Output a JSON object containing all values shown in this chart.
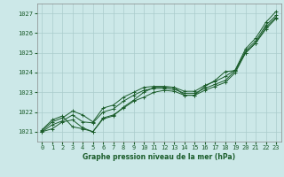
{
  "title": "Graphe pression niveau de la mer (hPa)",
  "background_color": "#cce8e8",
  "grid_color": "#aacccc",
  "line_color": "#1a5c2a",
  "ylim": [
    1020.5,
    1027.5
  ],
  "xlim": [
    -0.5,
    23.5
  ],
  "yticks": [
    1021,
    1022,
    1023,
    1024,
    1025,
    1026,
    1027
  ],
  "xticks": [
    0,
    1,
    2,
    3,
    4,
    5,
    6,
    7,
    8,
    9,
    10,
    11,
    12,
    13,
    14,
    15,
    16,
    17,
    18,
    19,
    20,
    21,
    22,
    23
  ],
  "lines": [
    [
      1021.0,
      1021.15,
      1021.5,
      1021.6,
      1021.2,
      1021.0,
      1021.7,
      1021.85,
      1022.2,
      1022.55,
      1022.75,
      1023.0,
      1023.1,
      1023.05,
      1022.85,
      1022.85,
      1023.1,
      1023.3,
      1023.5,
      1024.0,
      1025.0,
      1025.5,
      1026.3,
      1026.8
    ],
    [
      1021.0,
      1021.35,
      1021.55,
      1021.85,
      1021.5,
      1021.45,
      1022.0,
      1022.15,
      1022.55,
      1022.85,
      1023.1,
      1023.2,
      1023.2,
      1023.15,
      1022.95,
      1022.95,
      1023.2,
      1023.4,
      1023.6,
      1024.1,
      1025.1,
      1025.6,
      1026.4,
      1026.9
    ],
    [
      1021.05,
      1021.5,
      1021.7,
      1022.05,
      1021.85,
      1021.5,
      1022.2,
      1022.35,
      1022.75,
      1023.0,
      1023.25,
      1023.3,
      1023.3,
      1023.25,
      1023.05,
      1023.05,
      1023.35,
      1023.55,
      1023.8,
      1024.15,
      1025.2,
      1025.75,
      1026.55,
      1027.1
    ],
    [
      1021.1,
      1021.6,
      1021.8,
      1021.25,
      1021.15,
      1021.0,
      1021.65,
      1021.8,
      1022.25,
      1022.6,
      1023.0,
      1023.25,
      1023.25,
      1023.25,
      1022.85,
      1022.85,
      1023.3,
      1023.6,
      1024.05,
      1024.1,
      1025.0,
      1025.5,
      1026.2,
      1026.75
    ]
  ]
}
